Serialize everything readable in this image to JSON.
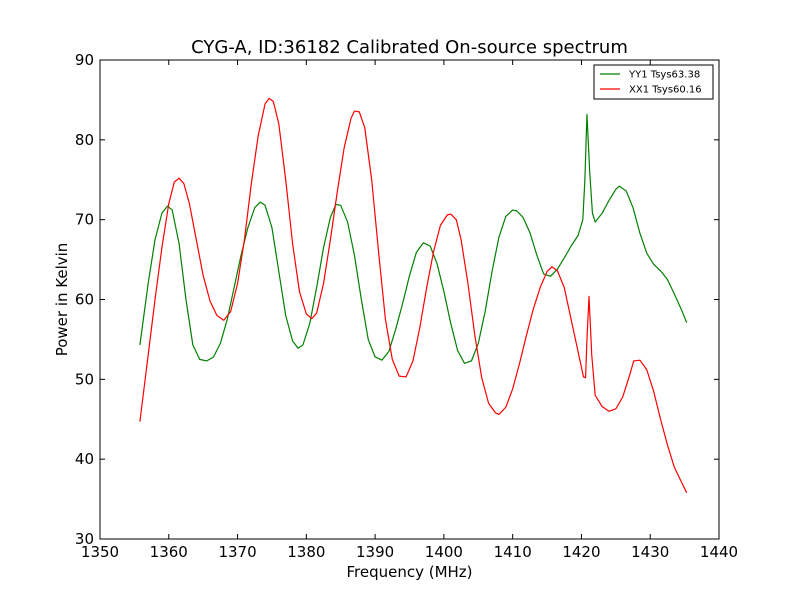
{
  "chart_data": {
    "type": "line",
    "title": "CYG-A, ID:36182 Calibrated On-source spectrum",
    "xlabel": "Frequency (MHz)",
    "ylabel": "Power in Kelvin",
    "xlim": [
      1350,
      1440
    ],
    "ylim": [
      30,
      90
    ],
    "xticks": [
      1350,
      1360,
      1370,
      1380,
      1390,
      1400,
      1410,
      1420,
      1430,
      1440
    ],
    "yticks": [
      30,
      40,
      50,
      60,
      70,
      80,
      90
    ],
    "legend_position": "top-right",
    "grid": false,
    "series": [
      {
        "name": "YY1 Tsys63.38",
        "color": "#008000",
        "x": [
          1355.8,
          1357,
          1358,
          1359,
          1359.8,
          1360.5,
          1361.5,
          1362.5,
          1363.5,
          1364.5,
          1365.5,
          1366.5,
          1367.5,
          1368.5,
          1369.5,
          1370.5,
          1371.5,
          1372.5,
          1373.3,
          1374,
          1375,
          1376,
          1377,
          1378,
          1378.8,
          1379.5,
          1380.5,
          1381.5,
          1382.5,
          1383.5,
          1384.3,
          1385,
          1386,
          1387,
          1388,
          1389,
          1390,
          1391,
          1392,
          1393,
          1394,
          1395,
          1396,
          1397,
          1398,
          1399,
          1400,
          1401,
          1402,
          1403,
          1404,
          1405,
          1406,
          1407,
          1408,
          1409,
          1410,
          1410.6,
          1411.5,
          1412.5,
          1413.5,
          1414.5,
          1415.5,
          1416.5,
          1417.5,
          1418.5,
          1419.5,
          1420.2,
          1420.5,
          1420.8,
          1421.2,
          1421.6,
          1422,
          1423,
          1424,
          1425,
          1425.5,
          1426.5,
          1427.5,
          1428.5,
          1429.5,
          1430.5,
          1431.5,
          1432.5,
          1433.5,
          1434.5,
          1435.3
        ],
        "y": [
          54.3,
          62,
          67.5,
          70.8,
          71.7,
          71.2,
          67,
          60,
          54.3,
          52.5,
          52.3,
          52.8,
          54.5,
          57.5,
          61.5,
          65.5,
          69,
          71.5,
          72.2,
          71.8,
          69,
          63.5,
          58,
          54.8,
          53.9,
          54.3,
          57,
          61.5,
          66.5,
          70.3,
          71.9,
          71.8,
          69.7,
          65.5,
          60,
          55,
          52.8,
          52.4,
          53.5,
          56.3,
          59.5,
          63,
          65.9,
          67.1,
          66.7,
          64.5,
          61,
          57,
          53.6,
          52,
          52.3,
          54.5,
          58.5,
          63.5,
          67.8,
          70.4,
          71.2,
          71.1,
          70.3,
          68.4,
          65.6,
          63.2,
          62.9,
          63.8,
          65.2,
          66.7,
          68,
          70,
          75,
          83.2,
          76,
          70.8,
          69.7,
          70.8,
          72.4,
          73.8,
          74.2,
          73.6,
          71.5,
          68.3,
          65.8,
          64.4,
          63.6,
          62.5,
          60.7,
          58.8,
          57.1
        ]
      },
      {
        "name": "XX1 Tsys60.16",
        "color": "#ff0000",
        "x": [
          1355.8,
          1357,
          1358,
          1359,
          1360,
          1360.8,
          1361.5,
          1362.2,
          1363,
          1364,
          1365,
          1366,
          1367,
          1368,
          1369,
          1370,
          1371,
          1372,
          1373,
          1374,
          1374.6,
          1375.2,
          1376,
          1377,
          1378,
          1379,
          1380,
          1380.8,
          1381.5,
          1382.5,
          1383.5,
          1384.5,
          1385.5,
          1386.5,
          1387,
          1387.7,
          1388.5,
          1389.5,
          1390.5,
          1391.5,
          1392.5,
          1393.5,
          1394.5,
          1395.5,
          1396.5,
          1397.5,
          1398.5,
          1399.5,
          1400.5,
          1401,
          1401.8,
          1402.5,
          1403.5,
          1404.5,
          1405.5,
          1406.5,
          1407.5,
          1408,
          1409,
          1410,
          1411,
          1412,
          1413,
          1414,
          1415,
          1415.7,
          1416.5,
          1417.5,
          1418.5,
          1419.5,
          1420.3,
          1420.6,
          1420.8,
          1421.1,
          1421.5,
          1422,
          1423,
          1424,
          1425,
          1426,
          1427,
          1427.6,
          1428.5,
          1429.5,
          1430.5,
          1431.5,
          1432.5,
          1433.5,
          1434.5,
          1435.3
        ],
        "y": [
          44.7,
          53,
          60,
          66.5,
          72,
          74.7,
          75.2,
          74.5,
          72,
          67.5,
          63,
          59.8,
          58,
          57.4,
          58.5,
          62,
          67.5,
          74.5,
          80.5,
          84.5,
          85.2,
          84.8,
          82,
          75,
          67,
          61,
          58.2,
          57.6,
          58.3,
          62,
          67.5,
          73.5,
          79,
          82.7,
          83.6,
          83.5,
          81.5,
          75,
          66,
          57.5,
          52.5,
          50.4,
          50.3,
          52.3,
          56.5,
          61.5,
          66,
          69.3,
          70.6,
          70.7,
          70,
          67.5,
          62,
          55.5,
          50.2,
          47,
          45.8,
          45.6,
          46.5,
          48.8,
          52,
          55.5,
          58.8,
          61.5,
          63.5,
          64.1,
          63.6,
          61.5,
          57.5,
          53.5,
          50.3,
          50.2,
          55,
          60.4,
          53,
          48,
          46.6,
          46,
          46.3,
          47.8,
          50.5,
          52.3,
          52.4,
          51.2,
          48.5,
          45,
          41.8,
          39,
          37.2,
          35.8
        ]
      }
    ]
  }
}
